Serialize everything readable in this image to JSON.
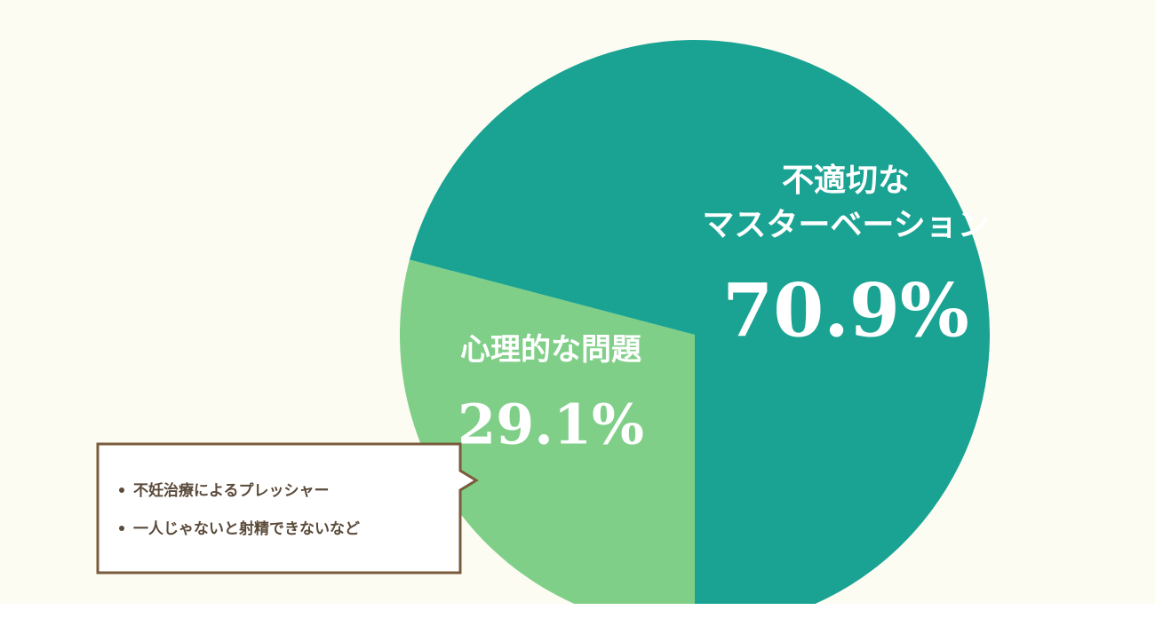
{
  "chart_data": {
    "type": "pie",
    "series": [
      {
        "name": [
          "不適切な",
          "マスターベーション"
        ],
        "color": "#1aa393",
        "values": [
          70.9
        ],
        "value_labels": [
          "70.9%"
        ]
      },
      {
        "name": [
          "心理的な問題"
        ],
        "color": "#80cf88",
        "values": [
          29.1
        ],
        "value_labels": [
          "29.1%"
        ]
      }
    ],
    "annotation": {
      "items": [
        "不妊治療によるプレッシャー",
        "一人じゃないと射精できないなど"
      ]
    }
  }
}
